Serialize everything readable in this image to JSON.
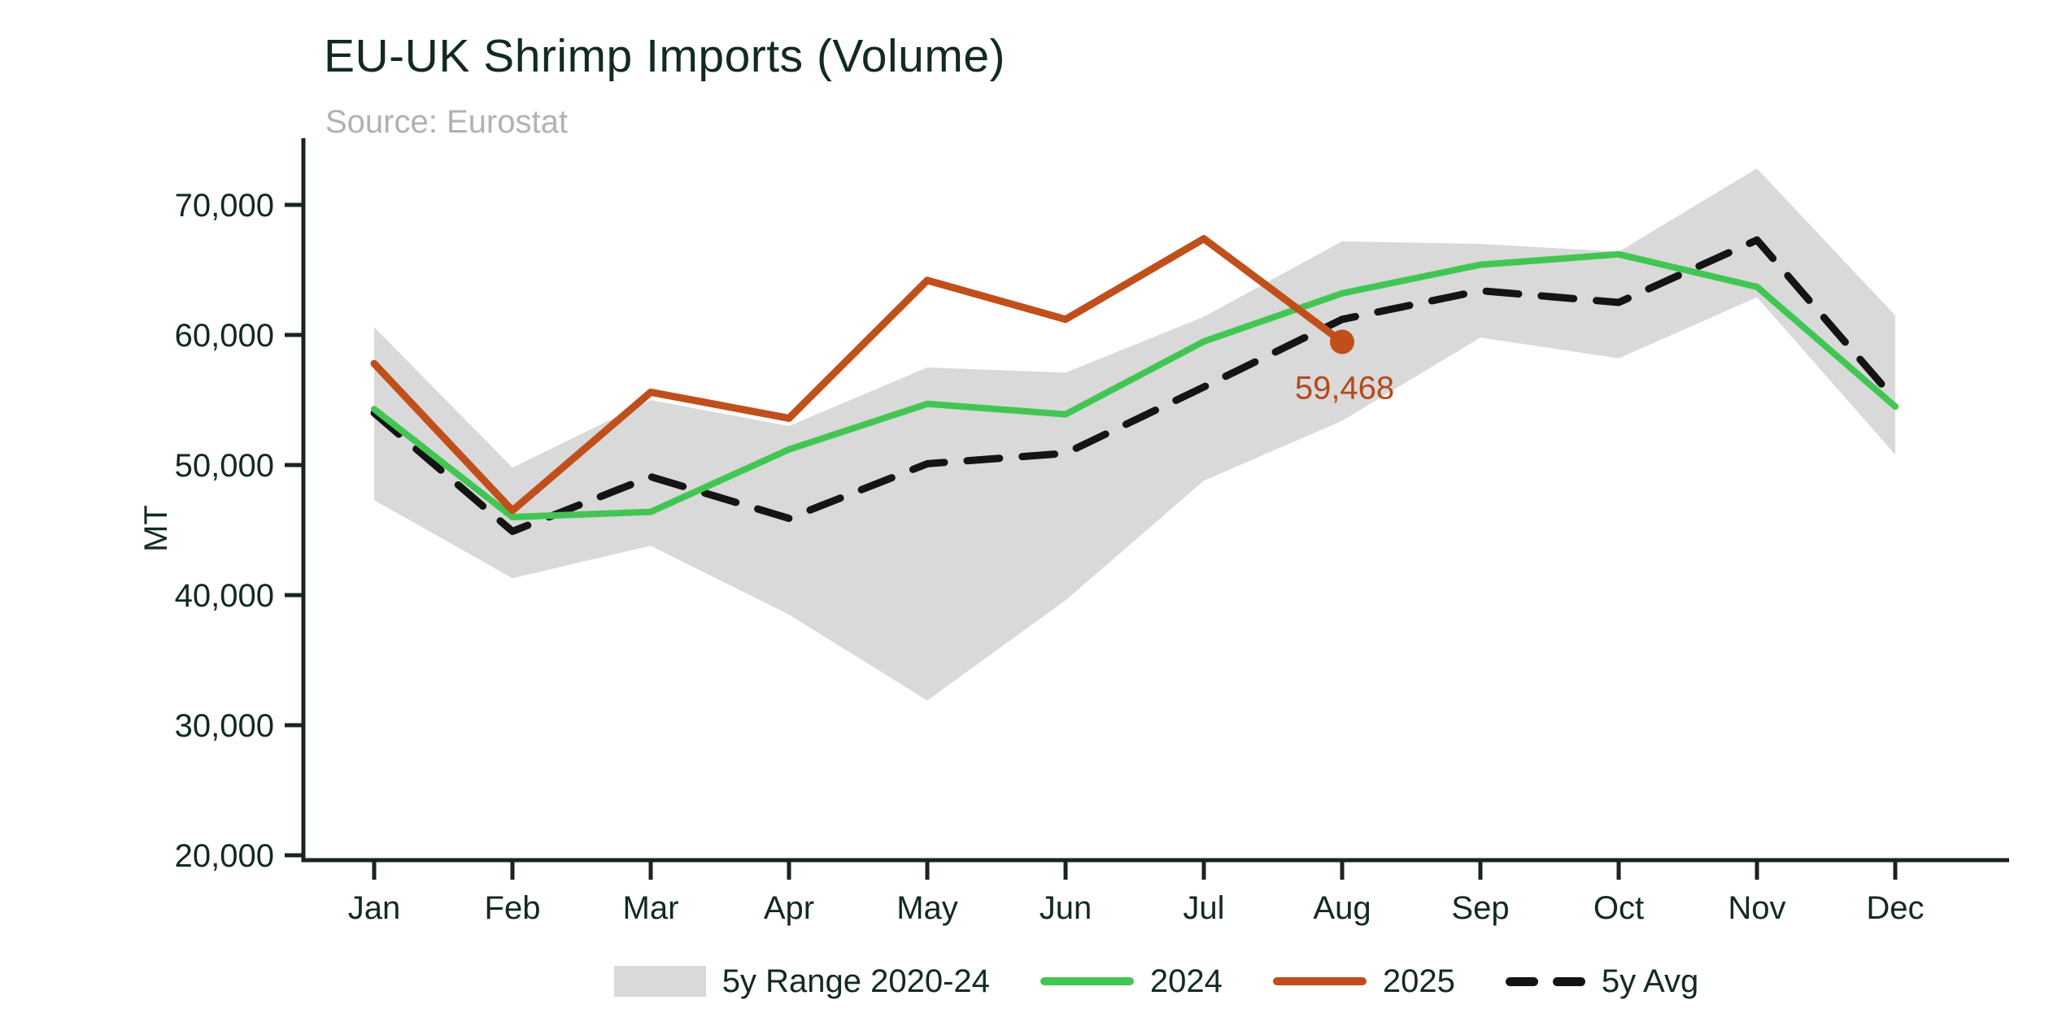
{
  "title": "EU-UK Shrimp Imports (Volume)",
  "source": "Source: Eurostat",
  "y_axis_label": "MT",
  "annotation": {
    "text": "59,468",
    "month": "Aug",
    "value": 59468
  },
  "legend": {
    "items": [
      {
        "label": "5y Range 2020-24",
        "swatch": "band"
      },
      {
        "label": "2024",
        "swatch": "green-line"
      },
      {
        "label": "2025",
        "swatch": "orange-line"
      },
      {
        "label": "5y Avg",
        "swatch": "black-dash"
      }
    ]
  },
  "colors": {
    "band": "#d9d9d9",
    "green": "#42c653",
    "orange": "#c04f1c",
    "dash": "#141414",
    "axis": "#1a241e",
    "text": "#122a20",
    "annotation": "#b5491b",
    "subtitle": "#b1b1b1"
  },
  "chart_data": {
    "type": "line",
    "title": "EU-UK Shrimp Imports (Volume)",
    "subtitle": "Source: Eurostat",
    "xlabel": "",
    "ylabel": "MT",
    "categories": [
      "Jan",
      "Feb",
      "Mar",
      "Apr",
      "May",
      "Jun",
      "Jul",
      "Aug",
      "Sep",
      "Oct",
      "Nov",
      "Dec"
    ],
    "ylim": [
      20000,
      74000
    ],
    "yticks": [
      20000,
      30000,
      40000,
      50000,
      60000,
      70000
    ],
    "grid": false,
    "legend_position": "bottom",
    "series": [
      {
        "name": "5y Range 2020-24",
        "type": "band",
        "upper": [
          60600,
          49800,
          55000,
          53000,
          57500,
          57100,
          61400,
          67200,
          67000,
          66400,
          72800,
          61500
        ],
        "lower": [
          47300,
          41300,
          43800,
          38500,
          31900,
          39600,
          48800,
          53400,
          59800,
          58200,
          62900,
          50800
        ],
        "color": "#d9d9d9"
      },
      {
        "name": "2024",
        "type": "line",
        "values": [
          54300,
          46000,
          46400,
          51200,
          54700,
          53900,
          59500,
          63200,
          65400,
          66200,
          63700,
          54500
        ],
        "color": "#42c653"
      },
      {
        "name": "2025",
        "type": "line",
        "values": [
          57800,
          46500,
          55600,
          53600,
          64200,
          61200,
          67400,
          59468,
          null,
          null,
          null,
          null
        ],
        "color": "#c04f1c",
        "endpoint_dot": true,
        "endpoint_label": "59,468"
      },
      {
        "name": "5y Avg",
        "type": "dashed-line",
        "values": [
          54000,
          44900,
          49100,
          45900,
          50100,
          50900,
          56000,
          61200,
          63400,
          62500,
          67300,
          55000
        ],
        "color": "#141414"
      }
    ]
  }
}
